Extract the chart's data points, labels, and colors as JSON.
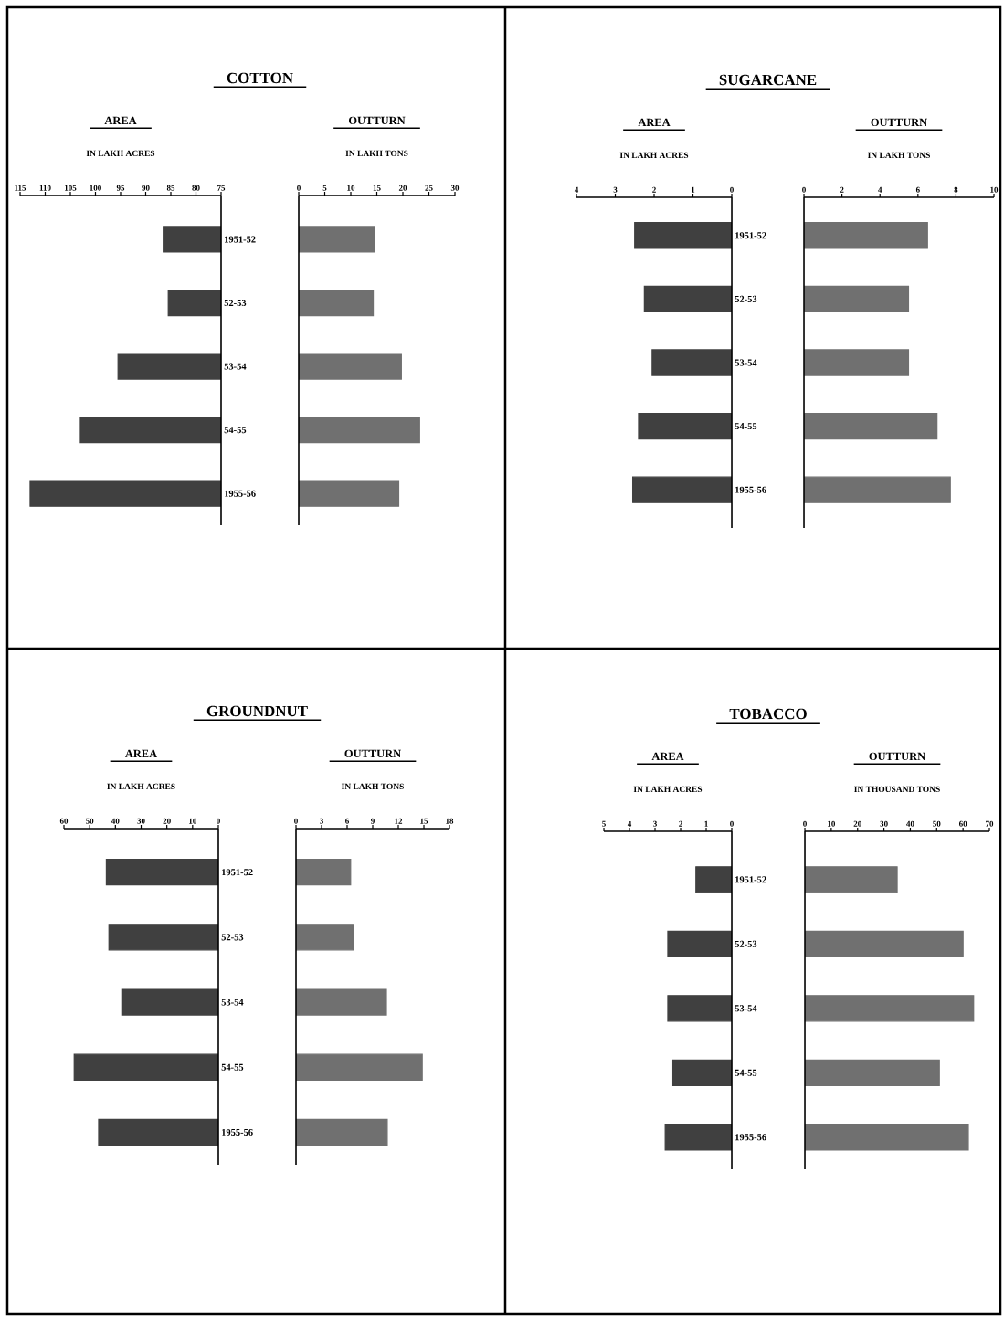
{
  "chart_data": [
    {
      "type": "bar",
      "orientation": "horizontal",
      "title": "COTTON",
      "subtitle": "AREA",
      "xlabel": "IN LAKH ACRES",
      "categories": [
        "1951-52",
        "52-53",
        "53-54",
        "54-55",
        "1955-56"
      ],
      "values": [
        86.5,
        85.5,
        95.5,
        103,
        113
      ],
      "color": "#404040",
      "xlim": [
        115,
        75
      ],
      "xticks": [
        115,
        110,
        105,
        100,
        95,
        90,
        85,
        80,
        75
      ]
    },
    {
      "type": "bar",
      "orientation": "horizontal",
      "subtitle": "OUTTURN",
      "xlabel": "IN LAKH TONS",
      "categories": [
        null,
        null,
        null,
        null,
        null
      ],
      "values": [
        14.5,
        14.3,
        19.7,
        23.2,
        19.2
      ],
      "color": "#707070",
      "xlim": [
        0,
        30
      ],
      "xticks": [
        0,
        5,
        10,
        15,
        20,
        25,
        30
      ],
      "tick_labels": "x"
    },
    {
      "type": "bar",
      "orientation": "horizontal",
      "title": "SUGARCANE",
      "subtitle": "AREA",
      "xlabel": "IN LAKH ACRES",
      "categories": [
        "1951-52",
        "52-53",
        "53-54",
        "54-55",
        "1955-56"
      ],
      "values": [
        2.5,
        2.25,
        2.05,
        2.4,
        2.55
      ],
      "color": "#404040",
      "xlim": [
        4,
        0
      ],
      "xticks": [
        4,
        3,
        2,
        1,
        0
      ]
    },
    {
      "type": "bar",
      "orientation": "horizontal",
      "subtitle": "OUTTURN",
      "xlabel": "IN LAKH TONS",
      "categories": [
        null,
        null,
        null,
        null,
        null
      ],
      "values": [
        6.5,
        5.5,
        5.5,
        7.0,
        7.7
      ],
      "color": "#707070",
      "xlim": [
        0,
        10
      ],
      "xticks": [
        0,
        2,
        4,
        6,
        8,
        10
      ],
      "tick_labels": "x"
    },
    {
      "type": "bar",
      "orientation": "horizontal",
      "title": "GROUNDNUT",
      "subtitle": "AREA",
      "xlabel": "IN LAKH ACRES",
      "categories": [
        "1951-52",
        "52-53",
        "53-54",
        "54-55",
        "1955-56"
      ],
      "values": [
        43.5,
        42.5,
        37.5,
        56,
        46.5
      ],
      "color": "#404040",
      "xlim": [
        60,
        0
      ],
      "xticks": [
        60,
        50,
        40,
        30,
        20,
        10,
        0
      ]
    },
    {
      "type": "bar",
      "orientation": "horizontal",
      "subtitle": "OUTTURN",
      "xlabel": "IN LAKH TONS",
      "categories": [
        null,
        null,
        null,
        null,
        null
      ],
      "values": [
        6.4,
        6.7,
        10.6,
        14.8,
        10.7
      ],
      "color": "#707070",
      "xlim": [
        0,
        18
      ],
      "xticks": [
        0,
        3,
        6,
        9,
        12,
        15,
        18
      ],
      "tick_labels": "x"
    },
    {
      "type": "bar",
      "orientation": "horizontal",
      "title": "TOBACCO",
      "subtitle": "AREA",
      "xlabel": "IN LAKH ACRES",
      "categories": [
        "1951-52",
        "52-53",
        "53-54",
        "54-55",
        "1955-56"
      ],
      "values": [
        1.4,
        2.5,
        2.5,
        2.3,
        2.6
      ],
      "color": "#404040",
      "xlim": [
        5,
        0
      ],
      "xticks": [
        5,
        4,
        3,
        2,
        1,
        0
      ]
    },
    {
      "type": "bar",
      "orientation": "horizontal",
      "subtitle": "OUTTURN",
      "xlabel": "IN THOUSAND TONS",
      "categories": [
        null,
        null,
        null,
        null,
        null
      ],
      "values": [
        35,
        60,
        64,
        51,
        62
      ],
      "color": "#707070",
      "xlim": [
        0,
        70
      ],
      "xticks": [
        0,
        10,
        20,
        30,
        40,
        50,
        60,
        70
      ],
      "tick_labels": "x"
    }
  ]
}
